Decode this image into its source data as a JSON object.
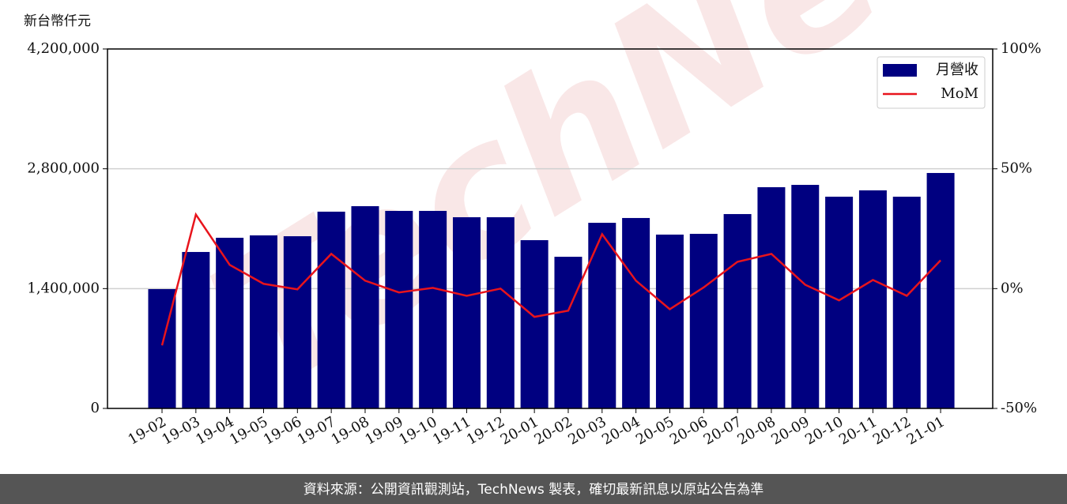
{
  "chart_data": {
    "type": "bar",
    "y_label": "新台幣仟元",
    "watermark": "TechNews",
    "footer": "資料來源：公開資訊觀測站，TechNews 製表，確切最新訊息以原站公告為準",
    "categories": [
      "19-02",
      "19-03",
      "19-04",
      "19-05",
      "19-06",
      "19-07",
      "19-08",
      "19-09",
      "19-10",
      "19-11",
      "19-12",
      "20-01",
      "20-02",
      "20-03",
      "20-04",
      "20-05",
      "20-06",
      "20-07",
      "20-08",
      "20-09",
      "20-10",
      "20-11",
      "20-12",
      "21-01"
    ],
    "series": [
      {
        "name": "月營收",
        "type": "bar",
        "color": "#000080",
        "values": [
          1394000,
          1828000,
          1994000,
          2022000,
          2012000,
          2299000,
          2363000,
          2308000,
          2308000,
          2234000,
          2234000,
          1966000,
          1772000,
          2169000,
          2225000,
          2031000,
          2040000,
          2271000,
          2585000,
          2612000,
          2474000,
          2548000,
          2474000,
          2751000
        ]
      },
      {
        "name": "MoM",
        "type": "line",
        "color": "#e8141c",
        "axis": "y2",
        "values": [
          -23.7,
          30.9,
          9.9,
          2.0,
          -0.3,
          14.5,
          3.3,
          -1.6,
          0.3,
          -3.0,
          0.0,
          -11.8,
          -9.2,
          22.7,
          3.3,
          -8.6,
          0.5,
          11.2,
          14.5,
          1.6,
          -4.9,
          3.6,
          -3.0,
          11.8
        ]
      }
    ],
    "ylim": [
      0,
      4200000
    ],
    "yticks": [
      0,
      {
        "value": 1400000,
        "label": "1,400,000"
      },
      {
        "value": 2800000,
        "label": "2,800,000"
      },
      {
        "value": 4200000,
        "label": "4,200,000"
      }
    ],
    "y2lim": [
      -50,
      100
    ],
    "y2ticks": [
      {
        "value": -50,
        "label": "-50%"
      },
      {
        "value": 0,
        "label": "0%"
      },
      {
        "value": 50,
        "label": "50%"
      },
      {
        "value": 100,
        "label": "100%"
      }
    ],
    "grid": true,
    "legend": "upper right"
  }
}
